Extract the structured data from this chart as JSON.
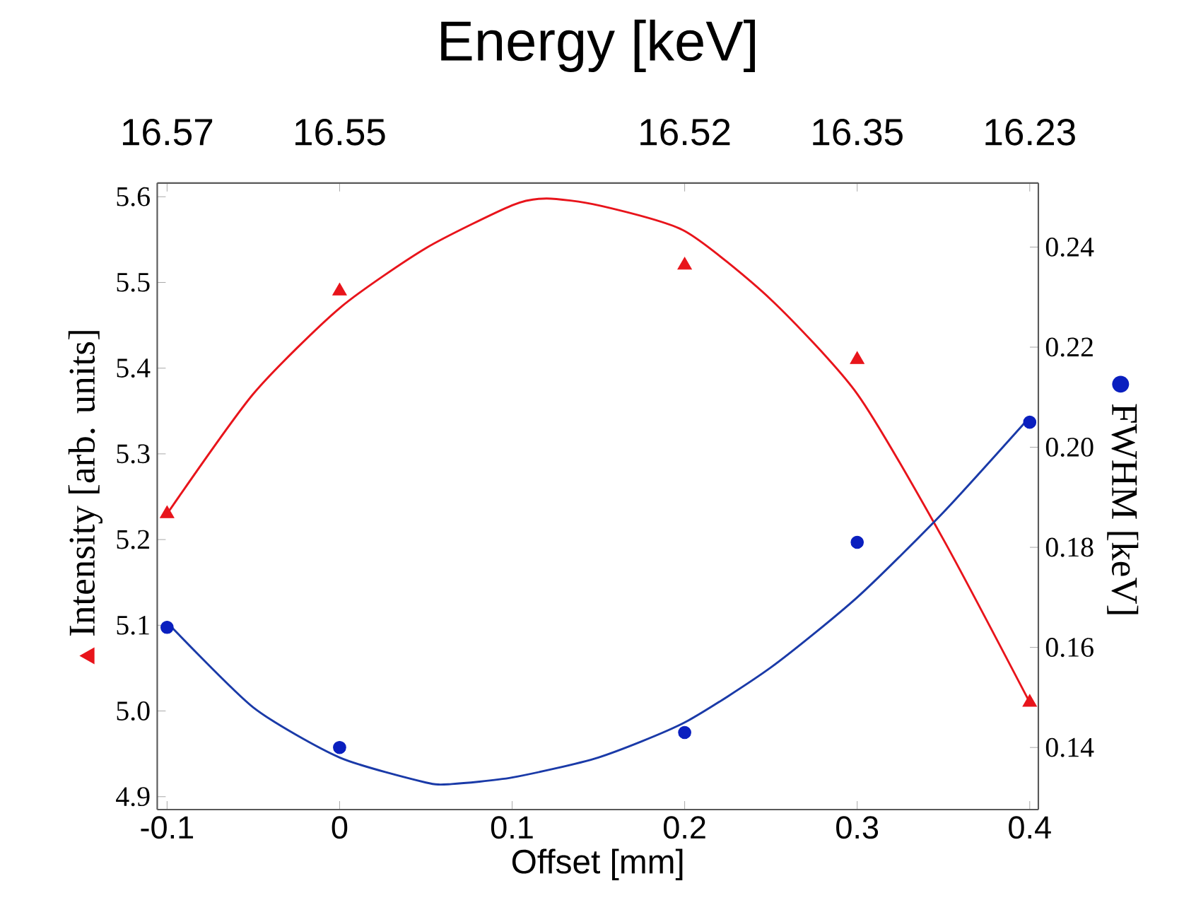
{
  "chart_data": {
    "type": "scatter",
    "title": "Energy [keV]",
    "xlabel": "Offset [mm]",
    "ylabel": "Intensity [arb. units]",
    "y2label": "FWHM [keV]",
    "xlim": [
      -0.1057,
      0.405
    ],
    "ylim": [
      4.885,
      5.616
    ],
    "y2lim": [
      0.1276,
      0.2528
    ],
    "xticks": [
      -0.1,
      0,
      0.1,
      0.2,
      0.3,
      0.4
    ],
    "yticks": [
      4.9,
      {
        "value": 5,
        "label": "5.0"
      },
      5.1,
      5.2,
      5.3,
      5.4,
      5.5,
      5.6
    ],
    "y2ticks": [
      0.14,
      0.16,
      0.18,
      {
        "value": 0.2,
        "label": "0.20"
      },
      0.22,
      0.24
    ],
    "annotations": [
      {
        "text": "16.57",
        "x": -0.1
      },
      {
        "text": "16.55",
        "x": 0
      },
      {
        "text": "16.52",
        "x": 0.2
      },
      {
        "text": "16.35",
        "x": 0.3
      },
      {
        "text": "16.23",
        "x": 0.4
      }
    ],
    "series": [
      {
        "type": "line",
        "color": "#e8141b",
        "marker": "none",
        "x": [
          -0.1,
          -0.05,
          0,
          0.05,
          0.1,
          0.12,
          0.15,
          0.2,
          0.25,
          0.3,
          0.35,
          0.4
        ],
        "values": [
          5.23,
          5.37,
          5.47,
          5.54,
          5.59,
          5.598,
          5.59,
          5.56,
          5.48,
          5.37,
          5.2,
          5.01
        ]
      },
      {
        "type": "line",
        "color": "#1a3aa8",
        "marker": "none",
        "axis": "y2",
        "x": [
          -0.1,
          -0.05,
          0,
          0.05,
          0.065,
          0.1,
          0.15,
          0.2,
          0.25,
          0.3,
          0.35,
          0.4
        ],
        "values": [
          0.165,
          0.148,
          0.138,
          0.133,
          0.1327,
          0.134,
          0.138,
          0.145,
          0.156,
          0.17,
          0.187,
          0.206
        ]
      },
      {
        "color": "#e8141b",
        "marker": "triangle",
        "x": [
          -0.1,
          0,
          0.2,
          0.3,
          0.4
        ],
        "values": [
          5.23,
          5.49,
          5.52,
          5.41,
          5.01
        ]
      },
      {
        "color": "#0a1fbf",
        "marker": "circle",
        "axis": "y2",
        "x": [
          -0.1,
          0,
          0.2,
          0.3,
          0.4
        ],
        "values": [
          0.164,
          0.14,
          0.143,
          0.181,
          0.205
        ]
      }
    ]
  }
}
